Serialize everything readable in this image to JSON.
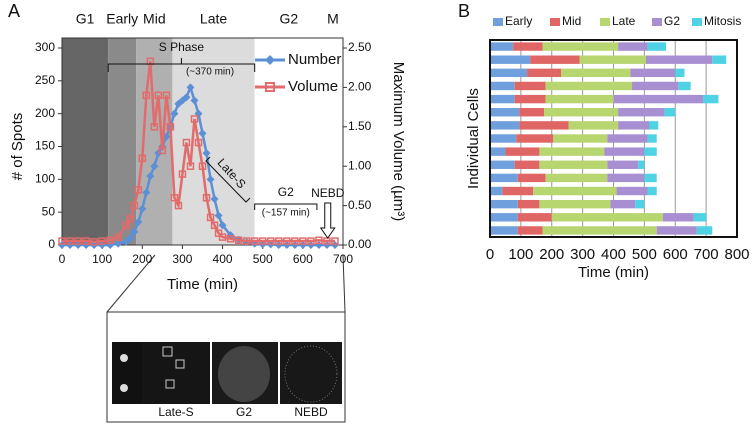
{
  "chart_data": [
    {
      "type": "line",
      "panel": "A",
      "xlabel": "Time (min)",
      "ylabel": "# of Spots",
      "y2label": "Maximum Volume (µm³)",
      "xlim": [
        0,
        700
      ],
      "xticks": [
        0,
        100,
        200,
        300,
        400,
        500,
        600,
        700
      ],
      "ylim": [
        0,
        300
      ],
      "yticks": [
        0,
        50,
        100,
        150,
        200,
        250,
        300
      ],
      "y2lim": [
        0,
        2.5
      ],
      "y2ticks": [
        {
          "value": 0,
          "label": "0.00"
        },
        {
          "value": 0.5,
          "label": "0.50"
        },
        {
          "value": 1,
          "label": "1.00"
        },
        {
          "value": 1.5,
          "label": "1.50"
        },
        {
          "value": 2,
          "label": "2.00"
        },
        {
          "value": 2.5,
          "label": "2.50"
        }
      ],
      "legend": "top-right",
      "phases": [
        {
          "label": "G1",
          "start": 0,
          "end": 115,
          "color": "#666666"
        },
        {
          "label": "Early",
          "start": 115,
          "end": 185,
          "color": "#8a8a8a"
        },
        {
          "label": "Mid",
          "start": 185,
          "end": 275,
          "color": "#b0b0b0"
        },
        {
          "label": "Late",
          "start": 275,
          "end": 480,
          "color": "#dcdcdc"
        },
        {
          "label": "G2",
          "start": 480,
          "end": 650,
          "color": "#ffffff"
        },
        {
          "label": "M",
          "start": 650,
          "end": 700,
          "color": "#ffffff"
        }
      ],
      "annotations": [
        "S Phase",
        "(~370 min)",
        "Late-S",
        "G2",
        "(~157 min)",
        "NEBD"
      ],
      "x": [
        0,
        20,
        40,
        60,
        80,
        100,
        120,
        140,
        160,
        170,
        180,
        190,
        200,
        210,
        220,
        230,
        240,
        250,
        260,
        270,
        280,
        290,
        300,
        310,
        320,
        330,
        340,
        350,
        360,
        370,
        380,
        390,
        400,
        420,
        440,
        460,
        480,
        500,
        520,
        540,
        560,
        580,
        600,
        620,
        640,
        660,
        680
      ],
      "series": [
        {
          "name": "Number",
          "color": "#5b8fd6",
          "values": [
            0,
            0,
            0,
            0,
            0,
            0,
            0,
            2,
            5,
            10,
            20,
            35,
            55,
            80,
            105,
            120,
            140,
            150,
            165,
            180,
            200,
            215,
            220,
            225,
            240,
            220,
            200,
            170,
            140,
            100,
            70,
            45,
            30,
            15,
            8,
            4,
            2,
            1,
            1,
            0,
            0,
            0,
            0,
            0,
            0,
            0,
            0
          ]
        },
        {
          "name": "Volume",
          "color": "#e26b6b",
          "axis": "y2",
          "values": [
            0.05,
            0.05,
            0.05,
            0.05,
            0.04,
            0.05,
            0.06,
            0.1,
            0.25,
            0.33,
            0.5,
            0.7,
            1.1,
            1.9,
            2.33,
            1.5,
            1.9,
            1.2,
            1.9,
            1.5,
            0.6,
            0.5,
            0.9,
            1.3,
            1.0,
            1.6,
            1.3,
            1.0,
            0.6,
            0.35,
            0.25,
            0.15,
            0.1,
            0.08,
            0.06,
            0.05,
            0.05,
            0.05,
            0.05,
            0.05,
            0.05,
            0.05,
            0.05,
            0.05,
            0.06,
            0.05,
            0.05
          ]
        }
      ],
      "inset_labels": [
        "Late-S",
        "G2",
        "NEBD"
      ]
    },
    {
      "type": "stacked-barh",
      "panel": "B",
      "xlabel": "Time (min)",
      "ylabel": "Individual Cells",
      "xlim": [
        0,
        800
      ],
      "xticks": [
        0,
        100,
        200,
        300,
        400,
        500,
        600,
        700,
        800
      ],
      "grid": true,
      "legend": "top",
      "categories": [
        null,
        null,
        null,
        null,
        null,
        null,
        null,
        null,
        null,
        null,
        null,
        null,
        null,
        null,
        null
      ],
      "series": [
        {
          "name": "Early",
          "color": "#6f9fdc",
          "values": [
            75,
            130,
            120,
            80,
            80,
            95,
            95,
            85,
            50,
            80,
            90,
            40,
            90,
            90,
            90
          ]
        },
        {
          "name": "Mid",
          "color": "#e06666",
          "values": [
            95,
            160,
            110,
            100,
            100,
            80,
            160,
            120,
            110,
            80,
            90,
            100,
            70,
            110,
            80
          ]
        },
        {
          "name": "Late",
          "color": "#b8d670",
          "values": [
            245,
            215,
            225,
            280,
            220,
            240,
            160,
            175,
            210,
            220,
            200,
            270,
            230,
            360,
            370
          ]
        },
        {
          "name": "G2",
          "color": "#a88fd2",
          "values": [
            95,
            215,
            145,
            150,
            290,
            150,
            100,
            130,
            130,
            100,
            120,
            100,
            80,
            100,
            130
          ]
        },
        {
          "name": "Mitosis",
          "color": "#4fd2e3",
          "values": [
            60,
            45,
            30,
            40,
            50,
            35,
            30,
            30,
            40,
            20,
            40,
            30,
            30,
            40,
            50
          ]
        }
      ]
    }
  ]
}
